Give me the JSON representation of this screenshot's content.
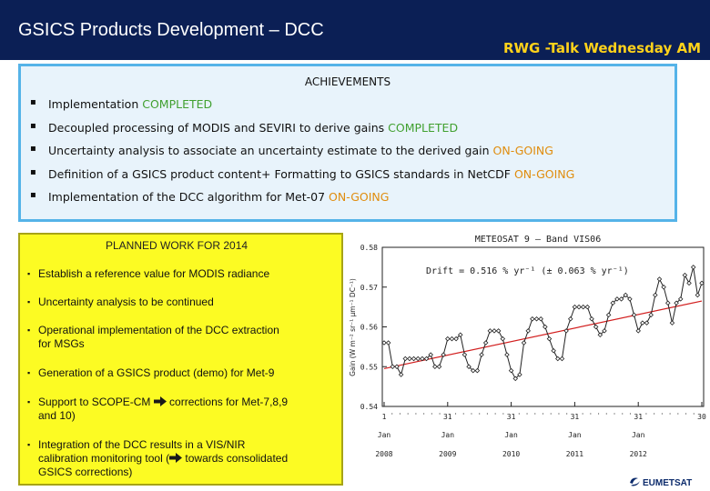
{
  "header": {
    "title": "GSICS Products Development – DCC",
    "talk": "RWG -Talk Wednesday AM"
  },
  "achievements": {
    "heading": "ACHIEVEMENTS",
    "items": [
      {
        "text": "Implementation ",
        "status": "COMPLETED"
      },
      {
        "text": "Decoupled processing of MODIS and SEVIRI to derive gains ",
        "status": "COMPLETED"
      },
      {
        "text": "Uncertainty analysis to associate an uncertainty estimate to the derived gain ",
        "status": "ON-GOING"
      },
      {
        "text": "Definition of a GSICS product content+ Formatting to GSICS standards in NetCDF ",
        "status": "ON-GOING"
      },
      {
        "text": "Implementation of the DCC algorithm for Met-07 ",
        "status": "ON-GOING"
      }
    ]
  },
  "planned": {
    "heading": "PLANNED WORK FOR 2014",
    "items": [
      {
        "line1": "Establish a reference value for MODIS radiance"
      },
      {
        "line1": "Uncertainty analysis to be continued"
      },
      {
        "line1": "Operational implementation of the DCC extraction",
        "line2": "for MSGs"
      },
      {
        "line1": "Generation of a GSICS product (demo) for Met-9"
      },
      {
        "line1a": "Support to SCOPE-CM ",
        "line1b": " corrections for Met-7,8,9",
        "line2": "and 10)"
      },
      {
        "line1": "Integration of the DCC results in a VIS/NIR",
        "line2a": "calibration monitoring tool (",
        "line2b": " towards consolidated",
        "line3": "GSICS corrections)"
      }
    ],
    "arrow_icon": "right-arrow-icon"
  },
  "chart_data": {
    "type": "line",
    "title": "METEOSAT 9 – Band VIS06",
    "annotation": "Drift = 0.516 % yr⁻¹ (± 0.063 % yr⁻¹)",
    "ylabel": "Gain (W m⁻² sr⁻¹ μm⁻¹ DC⁻¹)",
    "ylim": [
      0.54,
      0.58
    ],
    "yticks": [
      "0.58",
      "0.57",
      "0.56",
      "0.55",
      "0.54"
    ],
    "xticks": [
      {
        "top": "1",
        "bottom": "Jan",
        "year": "2008"
      },
      {
        "top": "31",
        "bottom": "Jan",
        "year": "2009"
      },
      {
        "top": "31",
        "bottom": "Jan",
        "year": "2010"
      },
      {
        "top": "31",
        "bottom": "Jan",
        "year": "2011"
      },
      {
        "top": "31",
        "bottom": "Jan",
        "year": "2012"
      },
      {
        "top": "30",
        "bottom": "",
        "year": ""
      }
    ],
    "values": [
      0.556,
      0.556,
      0.55,
      0.55,
      0.548,
      0.552,
      0.552,
      0.552,
      0.552,
      0.552,
      0.552,
      0.553,
      0.55,
      0.55,
      0.553,
      0.557,
      0.557,
      0.557,
      0.558,
      0.553,
      0.55,
      0.549,
      0.549,
      0.553,
      0.556,
      0.559,
      0.559,
      0.559,
      0.557,
      0.553,
      0.549,
      0.547,
      0.548,
      0.556,
      0.559,
      0.562,
      0.562,
      0.562,
      0.56,
      0.557,
      0.554,
      0.552,
      0.552,
      0.559,
      0.562,
      0.565,
      0.565,
      0.565,
      0.565,
      0.562,
      0.56,
      0.558,
      0.559,
      0.563,
      0.566,
      0.567,
      0.567,
      0.568,
      0.567,
      0.563,
      0.559,
      0.561,
      0.561,
      0.563,
      0.568,
      0.572,
      0.57,
      0.566,
      0.561,
      0.566,
      0.567,
      0.573,
      0.571,
      0.575,
      0.568,
      0.571
    ],
    "trend": [
      0.5495,
      0.5665
    ],
    "series_color": "#222222",
    "trend_color": "#d21f1f"
  },
  "logo": {
    "text": "EUMETSAT",
    "color": "#0b2a6b"
  }
}
